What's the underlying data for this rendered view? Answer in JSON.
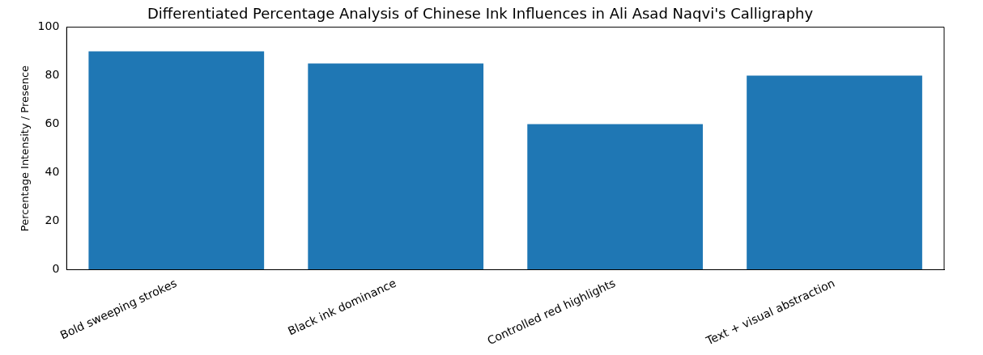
{
  "chart_data": {
    "type": "bar",
    "title": "Differentiated Percentage Analysis of Chinese Ink Influences in Ali Asad Naqvi's Calligraphy",
    "ylabel": "Percentage Intensity / Presence",
    "categories": [
      "Bold sweeping strokes",
      "Black ink dominance",
      "Controlled red highlights",
      "Text + visual abstraction"
    ],
    "values": [
      90,
      85,
      60,
      80
    ],
    "color": "#1f77b4",
    "ylim": [
      0,
      100
    ],
    "yticks": [
      0,
      20,
      40,
      60,
      80,
      100
    ],
    "grid": false
  }
}
